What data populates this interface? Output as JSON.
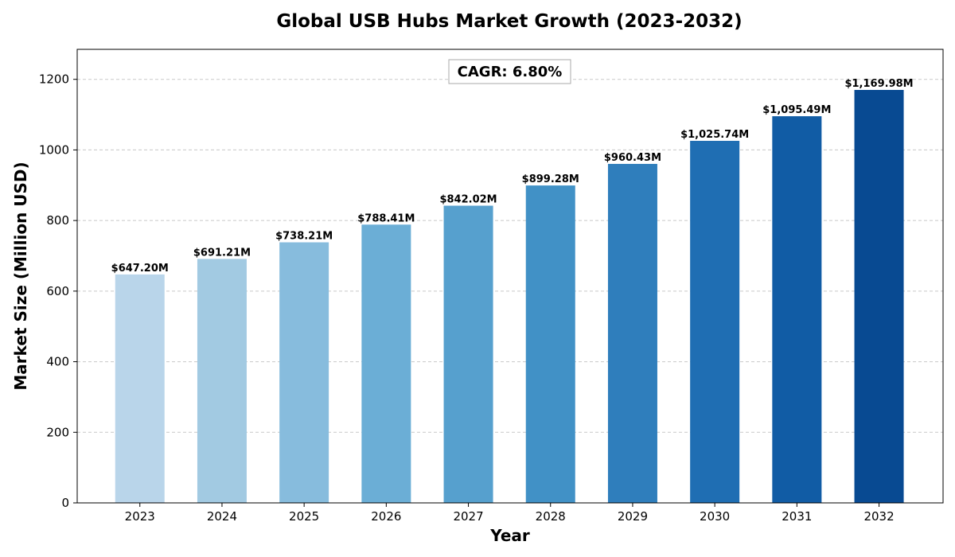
{
  "chart_data": {
    "type": "bar",
    "title": "Global USB Hubs Market Growth (2023-2032)",
    "xlabel": "Year",
    "ylabel": "Market Size (Million USD)",
    "categories": [
      "2023",
      "2024",
      "2025",
      "2026",
      "2027",
      "2028",
      "2029",
      "2030",
      "2031",
      "2032"
    ],
    "values": [
      647.2,
      691.21,
      738.21,
      788.41,
      842.02,
      899.28,
      960.43,
      1025.74,
      1095.49,
      1169.98
    ],
    "value_labels": [
      "$647.20M",
      "$691.21M",
      "$738.21M",
      "$788.41M",
      "$842.02M",
      "$899.28M",
      "$960.43M",
      "$1,025.74M",
      "$1,095.49M",
      "$1,169.98M"
    ],
    "bar_colors": [
      "#b9d5ea",
      "#a2cae2",
      "#87bcdd",
      "#6baed6",
      "#56a0ce",
      "#4191c6",
      "#2f7ebc",
      "#1f6eb3",
      "#115ca5",
      "#084a92"
    ],
    "ylim": [
      0,
      1285
    ],
    "yticks": [
      0,
      200,
      400,
      600,
      800,
      1000,
      1200
    ],
    "ytick_labels": [
      "0",
      "200",
      "400",
      "600",
      "800",
      "1000",
      "1200"
    ],
    "grid": true,
    "annotation": "CAGR: 6.80%"
  }
}
